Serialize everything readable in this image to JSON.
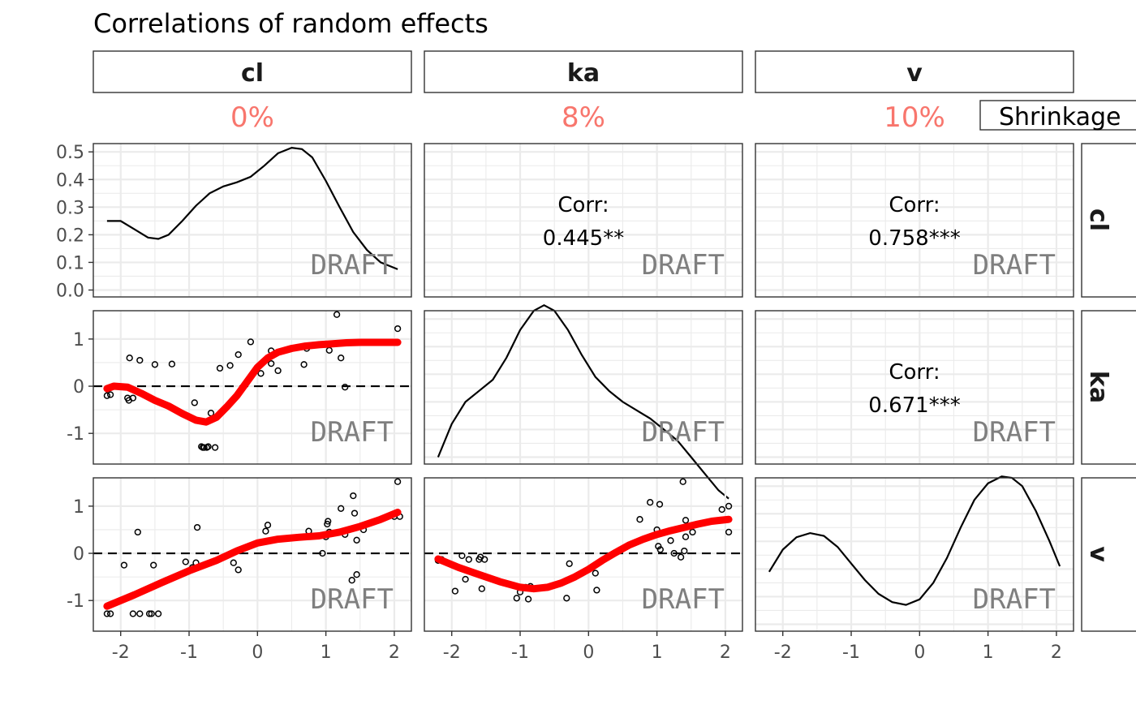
{
  "chart_data": {
    "type": "scatter",
    "title": "Correlations of random effects",
    "variables": [
      "cl",
      "ka",
      "v"
    ],
    "shrinkage": {
      "legend_label": "Shrinkage",
      "values": [
        "0%",
        "8%",
        "10%"
      ],
      "color": "#F8766D"
    },
    "watermark": "DRAFT",
    "x_ticks": [
      "-2",
      "-1",
      "0",
      "1",
      "2"
    ],
    "xlim": [
      -2.4,
      2.25
    ],
    "density_y_ticks": [
      "0.0",
      "0.1",
      "0.2",
      "0.3",
      "0.4",
      "0.5"
    ],
    "density_ylim": [
      -0.025,
      0.53
    ],
    "scatter_y_ticks": [
      "-1",
      "0",
      "1"
    ],
    "scatter_ylim": [
      -1.65,
      1.6
    ],
    "correlations": [
      {
        "row": "cl",
        "col": "ka",
        "label": "Corr:",
        "value": "0.445**"
      },
      {
        "row": "cl",
        "col": "v",
        "label": "Corr:",
        "value": "0.758***"
      },
      {
        "row": "ka",
        "col": "v",
        "label": "Corr:",
        "value": "0.671***"
      }
    ],
    "densities": {
      "cl": {
        "x": [
          -2.2,
          -2.0,
          -1.8,
          -1.6,
          -1.45,
          -1.3,
          -1.1,
          -0.9,
          -0.7,
          -0.5,
          -0.3,
          -0.1,
          0.1,
          0.3,
          0.5,
          0.65,
          0.8,
          1.0,
          1.2,
          1.4,
          1.6,
          1.8,
          2.05
        ],
        "y": [
          0.25,
          0.25,
          0.22,
          0.19,
          0.185,
          0.2,
          0.25,
          0.305,
          0.35,
          0.375,
          0.39,
          0.41,
          0.45,
          0.495,
          0.515,
          0.51,
          0.48,
          0.395,
          0.3,
          0.21,
          0.145,
          0.1,
          0.075
        ]
      },
      "ka": {
        "x": [
          -2.2,
          -2.0,
          -1.8,
          -1.6,
          -1.4,
          -1.2,
          -1.0,
          -0.8,
          -0.65,
          -0.5,
          -0.3,
          -0.1,
          0.1,
          0.3,
          0.5,
          0.7,
          0.9,
          1.1,
          1.3,
          1.5,
          1.7,
          1.9,
          2.05
        ],
        "y": [
          0.0,
          0.12,
          0.2,
          0.24,
          0.28,
          0.36,
          0.46,
          0.53,
          0.55,
          0.53,
          0.46,
          0.37,
          0.29,
          0.24,
          0.2,
          0.17,
          0.14,
          0.1,
          0.06,
          0.0,
          -0.06,
          -0.12,
          -0.15
        ]
      },
      "v": {
        "x": [
          -2.2,
          -2.0,
          -1.8,
          -1.6,
          -1.4,
          -1.2,
          -1.0,
          -0.8,
          -0.6,
          -0.4,
          -0.2,
          0.0,
          0.2,
          0.4,
          0.6,
          0.8,
          1.0,
          1.2,
          1.35,
          1.5,
          1.7,
          1.9,
          2.05
        ],
        "y": [
          0.19,
          0.27,
          0.315,
          0.33,
          0.32,
          0.28,
          0.22,
          0.16,
          0.11,
          0.08,
          0.07,
          0.09,
          0.15,
          0.24,
          0.35,
          0.45,
          0.51,
          0.535,
          0.53,
          0.5,
          0.41,
          0.3,
          0.21
        ]
      }
    },
    "scatter_panels": [
      {
        "x_var": "cl",
        "y_var": "ka",
        "points": [
          [
            -2.2,
            -0.2
          ],
          [
            -2.15,
            -0.18
          ],
          [
            -1.9,
            -0.25
          ],
          [
            -1.88,
            -0.3
          ],
          [
            -1.87,
            0.6
          ],
          [
            -1.82,
            -0.25
          ],
          [
            -1.72,
            0.55
          ],
          [
            -1.5,
            0.46
          ],
          [
            -1.25,
            0.47
          ],
          [
            -0.92,
            -0.35
          ],
          [
            -0.82,
            -1.28
          ],
          [
            -0.8,
            -1.3
          ],
          [
            -0.78,
            -1.3
          ],
          [
            -0.74,
            -1.3
          ],
          [
            -0.72,
            -1.28
          ],
          [
            -0.68,
            -0.57
          ],
          [
            -0.62,
            -1.3
          ],
          [
            -0.55,
            0.38
          ],
          [
            -0.4,
            0.44
          ],
          [
            -0.28,
            0.67
          ],
          [
            -0.1,
            0.94
          ],
          [
            0.05,
            0.27
          ],
          [
            0.2,
            0.75
          ],
          [
            0.2,
            0.48
          ],
          [
            0.3,
            0.33
          ],
          [
            0.68,
            0.46
          ],
          [
            0.72,
            0.8
          ],
          [
            1.05,
            0.76
          ],
          [
            1.16,
            1.52
          ],
          [
            1.22,
            0.6
          ],
          [
            1.28,
            -0.02
          ],
          [
            2.05,
            1.22
          ]
        ],
        "smooth": {
          "x": [
            -2.2,
            -2.1,
            -1.9,
            -1.7,
            -1.5,
            -1.3,
            -1.1,
            -0.9,
            -0.75,
            -0.6,
            -0.45,
            -0.3,
            -0.15,
            0.0,
            0.15,
            0.3,
            0.5,
            0.7,
            0.9,
            1.1,
            1.3,
            1.5,
            1.7,
            2.05
          ],
          "y": [
            -0.05,
            0.0,
            -0.02,
            -0.15,
            -0.3,
            -0.42,
            -0.58,
            -0.72,
            -0.76,
            -0.66,
            -0.44,
            -0.2,
            0.1,
            0.4,
            0.6,
            0.72,
            0.8,
            0.85,
            0.88,
            0.9,
            0.92,
            0.93,
            0.93,
            0.93
          ]
        }
      },
      {
        "x_var": "cl",
        "y_var": "v",
        "points": [
          [
            -2.2,
            -1.28
          ],
          [
            -2.15,
            -1.28
          ],
          [
            -1.95,
            -0.25
          ],
          [
            -1.82,
            -1.28
          ],
          [
            -1.75,
            0.45
          ],
          [
            -1.72,
            -1.28
          ],
          [
            -1.58,
            -1.28
          ],
          [
            -1.55,
            -1.28
          ],
          [
            -1.52,
            -0.25
          ],
          [
            -1.45,
            -1.28
          ],
          [
            -1.05,
            -0.18
          ],
          [
            -0.95,
            -0.3
          ],
          [
            -0.9,
            -0.2
          ],
          [
            -0.88,
            0.55
          ],
          [
            -0.35,
            -0.2
          ],
          [
            -0.28,
            -0.35
          ],
          [
            0.12,
            0.47
          ],
          [
            0.15,
            0.6
          ],
          [
            0.75,
            0.47
          ],
          [
            0.95,
            0.0
          ],
          [
            1.0,
            0.35
          ],
          [
            1.02,
            0.62
          ],
          [
            1.03,
            0.68
          ],
          [
            1.05,
            0.45
          ],
          [
            1.22,
            0.95
          ],
          [
            1.28,
            0.4
          ],
          [
            1.38,
            -0.57
          ],
          [
            1.4,
            1.22
          ],
          [
            1.42,
            0.85
          ],
          [
            1.45,
            -0.45
          ],
          [
            1.45,
            0.28
          ],
          [
            1.55,
            0.5
          ],
          [
            2.0,
            0.78
          ],
          [
            2.05,
            1.52
          ],
          [
            2.08,
            0.78
          ]
        ],
        "smooth": {
          "x": [
            -2.2,
            -1.8,
            -1.4,
            -1.0,
            -0.6,
            -0.3,
            0.0,
            0.3,
            0.6,
            0.9,
            1.2,
            1.5,
            1.8,
            2.05
          ],
          "y": [
            -1.12,
            -0.88,
            -0.62,
            -0.37,
            -0.15,
            0.05,
            0.22,
            0.3,
            0.34,
            0.37,
            0.45,
            0.57,
            0.72,
            0.87
          ]
        }
      },
      {
        "x_var": "ka",
        "y_var": "v",
        "points": [
          [
            -2.2,
            -0.15
          ],
          [
            -2.15,
            -0.13
          ],
          [
            -1.95,
            -0.8
          ],
          [
            -1.85,
            -0.05
          ],
          [
            -1.8,
            -0.55
          ],
          [
            -1.75,
            -0.13
          ],
          [
            -1.6,
            -0.13
          ],
          [
            -1.58,
            -0.08
          ],
          [
            -1.56,
            -0.75
          ],
          [
            -1.52,
            -0.13
          ],
          [
            -1.05,
            -0.95
          ],
          [
            -1.0,
            -0.82
          ],
          [
            -0.92,
            -0.72
          ],
          [
            -0.88,
            -0.97
          ],
          [
            -0.85,
            -0.7
          ],
          [
            -0.32,
            -0.95
          ],
          [
            -0.28,
            -0.22
          ],
          [
            0.1,
            -0.42
          ],
          [
            0.12,
            -0.78
          ],
          [
            0.75,
            0.72
          ],
          [
            0.9,
            1.08
          ],
          [
            1.0,
            0.5
          ],
          [
            1.02,
            0.15
          ],
          [
            1.04,
            1.04
          ],
          [
            1.05,
            0.08
          ],
          [
            1.2,
            0.27
          ],
          [
            1.25,
            0.0
          ],
          [
            1.35,
            -0.08
          ],
          [
            1.38,
            1.52
          ],
          [
            1.4,
            0.05
          ],
          [
            1.42,
            0.7
          ],
          [
            1.42,
            0.35
          ],
          [
            1.52,
            0.45
          ],
          [
            1.95,
            0.93
          ],
          [
            2.05,
            1.0
          ],
          [
            2.05,
            0.45
          ]
        ],
        "smooth": {
          "x": [
            -2.2,
            -1.9,
            -1.6,
            -1.3,
            -1.0,
            -0.8,
            -0.6,
            -0.4,
            -0.2,
            0.0,
            0.2,
            0.4,
            0.6,
            0.8,
            1.0,
            1.2,
            1.4,
            1.6,
            1.8,
            2.05
          ],
          "y": [
            -0.12,
            -0.3,
            -0.45,
            -0.6,
            -0.72,
            -0.75,
            -0.72,
            -0.63,
            -0.5,
            -0.34,
            -0.15,
            0.02,
            0.18,
            0.3,
            0.4,
            0.48,
            0.55,
            0.62,
            0.68,
            0.72
          ]
        }
      }
    ]
  }
}
